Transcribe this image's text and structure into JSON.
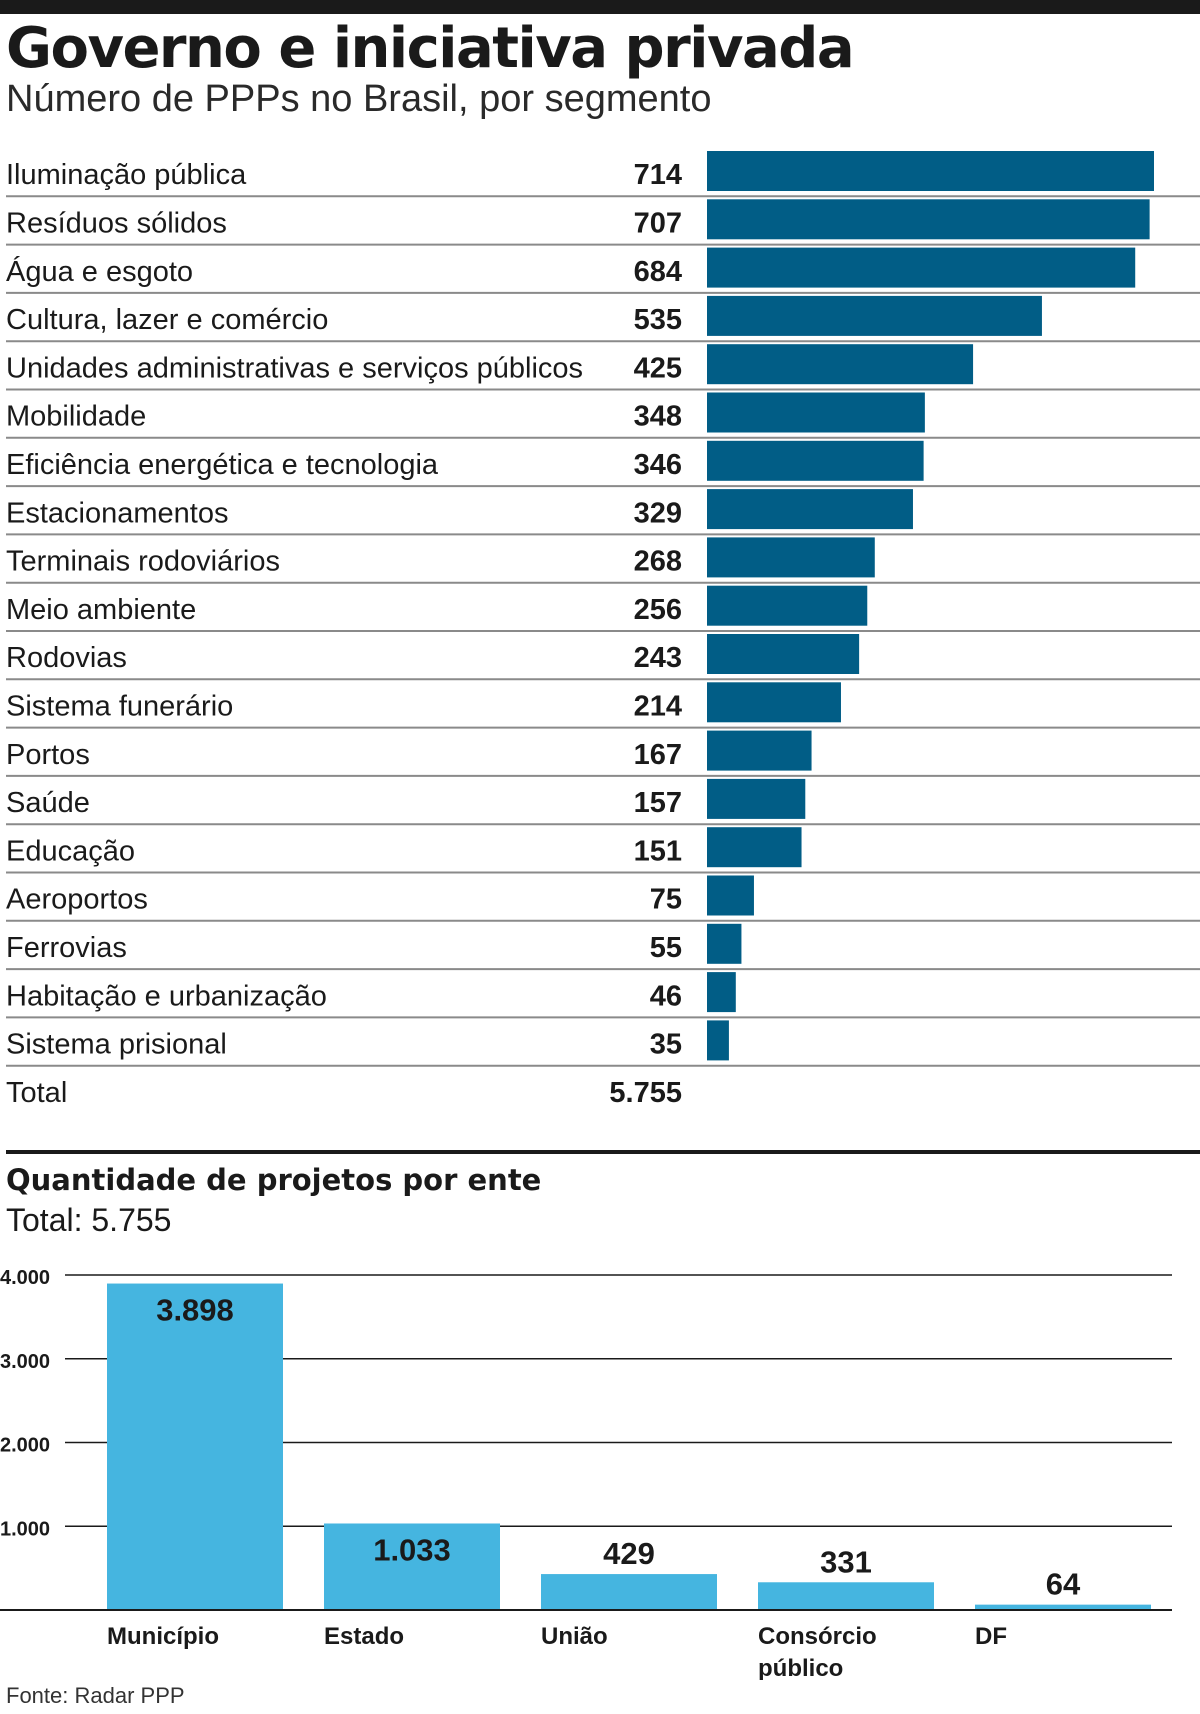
{
  "header": {
    "title": "Governo e iniciativa privada",
    "subtitle": "Número de PPPs no Brasil, por segmento"
  },
  "section2": {
    "title": "Quantidade de projetos por ente",
    "subtitle": "Total: 5.755"
  },
  "footer": {
    "source": "Fonte: Radar PPP"
  },
  "colors": {
    "bar_dark": "#015d86",
    "bar_light": "#45b5e0",
    "rule": "#8a8a8a",
    "text": "#1a1a1a"
  },
  "chart_data": [
    {
      "type": "bar",
      "orientation": "horizontal",
      "title": "Número de PPPs no Brasil, por segmento",
      "categories": [
        "Iluminação pública",
        "Resíduos sólidos",
        "Água e esgoto",
        "Cultura, lazer e comércio",
        "Unidades administrativas e serviços públicos",
        "Mobilidade",
        "Eficiência energética e tecnologia",
        "Estacionamentos",
        "Terminais rodoviários",
        "Meio ambiente",
        "Rodovias",
        "Sistema funerário",
        "Portos",
        "Saúde",
        "Educação",
        "Aeroportos",
        "Ferrovias",
        "Habitação e urbanização",
        "Sistema prisional"
      ],
      "values": [
        714,
        707,
        684,
        535,
        425,
        348,
        346,
        329,
        268,
        256,
        243,
        214,
        167,
        157,
        151,
        75,
        55,
        46,
        35
      ],
      "value_labels": [
        "714",
        "707",
        "684",
        "535",
        "425",
        "348",
        "346",
        "329",
        "268",
        "256",
        "243",
        "214",
        "167",
        "157",
        "151",
        "75",
        "55",
        "46",
        "35"
      ],
      "total_label": "Total",
      "total_value": "5.755",
      "grid": false
    },
    {
      "type": "bar",
      "title": "Quantidade de projetos por ente",
      "categories": [
        "Município",
        "Estado",
        "União",
        "Consórcio público",
        "DF"
      ],
      "values": [
        3898,
        1033,
        429,
        331,
        64
      ],
      "value_labels": [
        "3.898",
        "1.033",
        "429",
        "331",
        "64"
      ],
      "ylim": [
        0,
        4000
      ],
      "yticks": [
        1000,
        2000,
        3000,
        4000
      ],
      "ytick_labels": [
        "1.000",
        "2.000",
        "3.000",
        "4.000"
      ],
      "grid": true
    }
  ]
}
